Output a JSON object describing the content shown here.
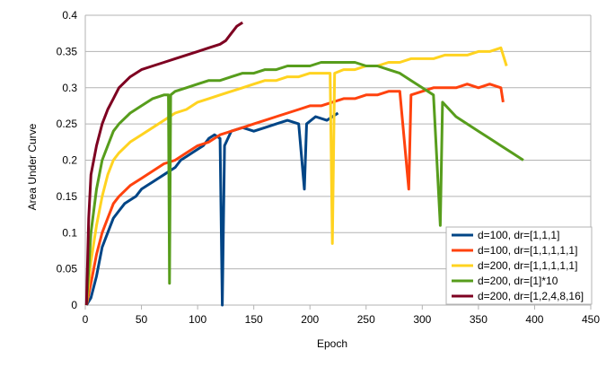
{
  "chart_data": {
    "type": "line",
    "title": "",
    "xlabel": "Epoch",
    "ylabel": "Area Under Curve",
    "xlim": [
      0,
      450
    ],
    "ylim": [
      0,
      0.4
    ],
    "x_ticks": [
      0,
      50,
      100,
      150,
      200,
      250,
      300,
      350,
      400,
      450
    ],
    "y_ticks": [
      0,
      0.05,
      0.1,
      0.15,
      0.2,
      0.25,
      0.3,
      0.35,
      0.4
    ],
    "x_tick_labels": [
      "0",
      "50",
      "100",
      "150",
      "200",
      "250",
      "300",
      "350",
      "400",
      "450"
    ],
    "y_tick_labels": [
      "0",
      "0.05",
      "0.1",
      "0.15",
      "0.2",
      "0.25",
      "0.3",
      "0.35",
      "0.4"
    ],
    "grid": "horizontal",
    "legend_position": "bottom-right",
    "series": [
      {
        "name": "d=100, dr=[1,1,1]",
        "color": "#004586",
        "points": [
          [
            1,
            0.0
          ],
          [
            5,
            0.01
          ],
          [
            10,
            0.04
          ],
          [
            15,
            0.08
          ],
          [
            20,
            0.1
          ],
          [
            25,
            0.12
          ],
          [
            30,
            0.13
          ],
          [
            35,
            0.14
          ],
          [
            40,
            0.145
          ],
          [
            45,
            0.15
          ],
          [
            50,
            0.16
          ],
          [
            55,
            0.165
          ],
          [
            60,
            0.17
          ],
          [
            65,
            0.175
          ],
          [
            70,
            0.18
          ],
          [
            75,
            0.185
          ],
          [
            80,
            0.19
          ],
          [
            85,
            0.2
          ],
          [
            90,
            0.205
          ],
          [
            95,
            0.21
          ],
          [
            100,
            0.215
          ],
          [
            105,
            0.22
          ],
          [
            110,
            0.23
          ],
          [
            115,
            0.235
          ],
          [
            120,
            0.23
          ],
          [
            122,
            0.0
          ],
          [
            124,
            0.22
          ],
          [
            130,
            0.24
          ],
          [
            140,
            0.245
          ],
          [
            150,
            0.24
          ],
          [
            160,
            0.245
          ],
          [
            170,
            0.25
          ],
          [
            180,
            0.255
          ],
          [
            190,
            0.25
          ],
          [
            195,
            0.16
          ],
          [
            197,
            0.25
          ],
          [
            205,
            0.26
          ],
          [
            215,
            0.255
          ],
          [
            225,
            0.265
          ]
        ]
      },
      {
        "name": "d=100, dr=[1,1,1,1,1]",
        "color": "#ff420e",
        "points": [
          [
            1,
            0.0
          ],
          [
            5,
            0.03
          ],
          [
            10,
            0.07
          ],
          [
            15,
            0.1
          ],
          [
            20,
            0.12
          ],
          [
            25,
            0.14
          ],
          [
            30,
            0.15
          ],
          [
            40,
            0.165
          ],
          [
            50,
            0.175
          ],
          [
            60,
            0.185
          ],
          [
            70,
            0.195
          ],
          [
            80,
            0.2
          ],
          [
            90,
            0.21
          ],
          [
            100,
            0.22
          ],
          [
            110,
            0.225
          ],
          [
            120,
            0.235
          ],
          [
            130,
            0.24
          ],
          [
            140,
            0.245
          ],
          [
            150,
            0.25
          ],
          [
            160,
            0.255
          ],
          [
            170,
            0.26
          ],
          [
            180,
            0.265
          ],
          [
            190,
            0.27
          ],
          [
            200,
            0.275
          ],
          [
            210,
            0.275
          ],
          [
            220,
            0.28
          ],
          [
            230,
            0.285
          ],
          [
            240,
            0.285
          ],
          [
            250,
            0.29
          ],
          [
            260,
            0.29
          ],
          [
            270,
            0.295
          ],
          [
            280,
            0.295
          ],
          [
            288,
            0.16
          ],
          [
            290,
            0.29
          ],
          [
            300,
            0.295
          ],
          [
            310,
            0.3
          ],
          [
            320,
            0.3
          ],
          [
            330,
            0.3
          ],
          [
            340,
            0.305
          ],
          [
            350,
            0.3
          ],
          [
            360,
            0.305
          ],
          [
            370,
            0.3
          ],
          [
            372,
            0.28
          ]
        ]
      },
      {
        "name": "d=200, dr=[1,1,1,1,1]",
        "color": "#ffd320",
        "points": [
          [
            1,
            0.0
          ],
          [
            5,
            0.06
          ],
          [
            10,
            0.11
          ],
          [
            15,
            0.15
          ],
          [
            20,
            0.18
          ],
          [
            25,
            0.2
          ],
          [
            30,
            0.21
          ],
          [
            40,
            0.225
          ],
          [
            50,
            0.235
          ],
          [
            60,
            0.245
          ],
          [
            70,
            0.255
          ],
          [
            80,
            0.265
          ],
          [
            90,
            0.27
          ],
          [
            100,
            0.28
          ],
          [
            110,
            0.285
          ],
          [
            120,
            0.29
          ],
          [
            130,
            0.295
          ],
          [
            140,
            0.3
          ],
          [
            150,
            0.305
          ],
          [
            160,
            0.31
          ],
          [
            170,
            0.31
          ],
          [
            180,
            0.315
          ],
          [
            190,
            0.315
          ],
          [
            200,
            0.32
          ],
          [
            210,
            0.32
          ],
          [
            218,
            0.32
          ],
          [
            220,
            0.085
          ],
          [
            222,
            0.32
          ],
          [
            230,
            0.325
          ],
          [
            240,
            0.325
          ],
          [
            250,
            0.33
          ],
          [
            260,
            0.33
          ],
          [
            270,
            0.335
          ],
          [
            280,
            0.335
          ],
          [
            290,
            0.34
          ],
          [
            300,
            0.34
          ],
          [
            310,
            0.34
          ],
          [
            320,
            0.345
          ],
          [
            330,
            0.345
          ],
          [
            340,
            0.345
          ],
          [
            350,
            0.35
          ],
          [
            360,
            0.35
          ],
          [
            370,
            0.355
          ],
          [
            375,
            0.33
          ]
        ]
      },
      {
        "name": "d=200, dr=[1]*10",
        "color": "#579d1c",
        "points": [
          [
            1,
            0.0
          ],
          [
            5,
            0.1
          ],
          [
            10,
            0.16
          ],
          [
            15,
            0.2
          ],
          [
            20,
            0.22
          ],
          [
            25,
            0.24
          ],
          [
            30,
            0.25
          ],
          [
            40,
            0.265
          ],
          [
            50,
            0.275
          ],
          [
            60,
            0.285
          ],
          [
            70,
            0.29
          ],
          [
            74,
            0.29
          ],
          [
            75,
            0.03
          ],
          [
            76,
            0.29
          ],
          [
            80,
            0.295
          ],
          [
            90,
            0.3
          ],
          [
            100,
            0.305
          ],
          [
            110,
            0.31
          ],
          [
            120,
            0.31
          ],
          [
            130,
            0.315
          ],
          [
            140,
            0.32
          ],
          [
            150,
            0.32
          ],
          [
            160,
            0.325
          ],
          [
            170,
            0.325
          ],
          [
            180,
            0.33
          ],
          [
            190,
            0.33
          ],
          [
            200,
            0.33
          ],
          [
            210,
            0.335
          ],
          [
            220,
            0.335
          ],
          [
            230,
            0.335
          ],
          [
            240,
            0.335
          ],
          [
            250,
            0.33
          ],
          [
            260,
            0.33
          ],
          [
            270,
            0.325
          ],
          [
            280,
            0.32
          ],
          [
            290,
            0.31
          ],
          [
            300,
            0.3
          ],
          [
            310,
            0.29
          ],
          [
            316,
            0.11
          ],
          [
            318,
            0.28
          ],
          [
            330,
            0.26
          ],
          [
            340,
            0.25
          ],
          [
            350,
            0.24
          ],
          [
            360,
            0.23
          ],
          [
            370,
            0.22
          ],
          [
            380,
            0.21
          ],
          [
            390,
            0.2
          ]
        ]
      },
      {
        "name": "d=200, dr=[1,2,4,8,16]",
        "color": "#7e0021",
        "points": [
          [
            1,
            0.0
          ],
          [
            3,
            0.12
          ],
          [
            5,
            0.18
          ],
          [
            10,
            0.22
          ],
          [
            15,
            0.25
          ],
          [
            20,
            0.27
          ],
          [
            25,
            0.285
          ],
          [
            30,
            0.3
          ],
          [
            40,
            0.315
          ],
          [
            50,
            0.325
          ],
          [
            60,
            0.33
          ],
          [
            70,
            0.335
          ],
          [
            80,
            0.34
          ],
          [
            90,
            0.345
          ],
          [
            100,
            0.35
          ],
          [
            110,
            0.355
          ],
          [
            120,
            0.36
          ],
          [
            125,
            0.365
          ],
          [
            130,
            0.375
          ],
          [
            135,
            0.385
          ],
          [
            140,
            0.39
          ]
        ]
      }
    ]
  }
}
